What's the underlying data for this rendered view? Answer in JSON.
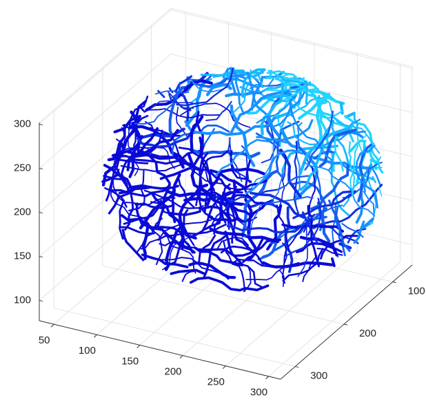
{
  "chart_data": {
    "type": "line3d",
    "xlim": [
      33,
      314
    ],
    "xticks": [
      50,
      100,
      150,
      200,
      250,
      300
    ],
    "ylim": [
      330,
      60
    ],
    "yticks": [
      100,
      200,
      300
    ],
    "zlim": [
      77,
      302
    ],
    "zticks": [
      100,
      150,
      200,
      250,
      300
    ],
    "grid": true
  }
}
